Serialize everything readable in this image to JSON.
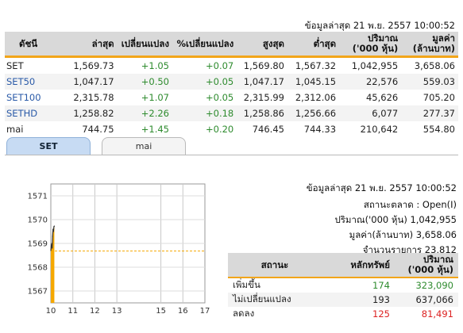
{
  "header": {
    "timestamp": "ข้อมูลล่าสุด 21 พ.ย. 2557 10:00:52"
  },
  "index_table": {
    "columns": [
      "ดัชนี",
      "ล่าสุด",
      "เปลี่ยนแปลง",
      "%เปลี่ยนแปลง",
      "สูงสุด",
      "ต่ำสุด",
      "ปริมาณ",
      "('000 หุ้น)",
      "มูลค่า",
      "(ล้านบาท)"
    ],
    "rows": [
      {
        "name": "SET",
        "last": "1,569.73",
        "chg": "+1.05",
        "pct": "+0.07",
        "high": "1,569.80",
        "low": "1,567.32",
        "vol": "1,042,955",
        "val": "3,658.06"
      },
      {
        "name": "SET50",
        "last": "1,047.17",
        "chg": "+0.50",
        "pct": "+0.05",
        "high": "1,047.17",
        "low": "1,045.15",
        "vol": "22,576",
        "val": "559.03"
      },
      {
        "name": "SET100",
        "last": "2,315.78",
        "chg": "+1.07",
        "pct": "+0.05",
        "high": "2,315.99",
        "low": "2,312.06",
        "vol": "45,626",
        "val": "705.20"
      },
      {
        "name": "SETHD",
        "last": "1,258.82",
        "chg": "+2.26",
        "pct": "+0.18",
        "high": "1,258.86",
        "low": "1,256.66",
        "vol": "6,077",
        "val": "277.37"
      },
      {
        "name": "mai",
        "last": "744.75",
        "chg": "+1.45",
        "pct": "+0.20",
        "high": "746.45",
        "low": "744.33",
        "vol": "210,642",
        "val": "554.80"
      }
    ]
  },
  "tabs": [
    {
      "label": "SET"
    },
    {
      "label": "mai"
    }
  ],
  "chart_data": {
    "type": "line",
    "x_ticks": [
      "10",
      "11",
      "12",
      "13",
      "15",
      "16",
      "17"
    ],
    "y_ticks": [
      "1571",
      "1570",
      "1569",
      "1568",
      "1567"
    ],
    "ylim": [
      1566.5,
      1571.5
    ],
    "prev_close": 1568.68,
    "x": [
      10.0,
      10.02,
      10.04,
      10.06,
      10.08,
      10.1,
      10.12,
      10.14,
      10.16
    ],
    "values": [
      1568.7,
      1568.9,
      1569.0,
      1568.8,
      1569.3,
      1569.6,
      1569.5,
      1569.7,
      1569.73
    ],
    "line_color": "#333333",
    "fill_color": "#f5a800",
    "ref_color": "#f5a800"
  },
  "market_info": {
    "timestamp": "ข้อมูลล่าสุด 21 พ.ย. 2557 10:00:52",
    "status": "สถานะตลาด : Open(I)",
    "volume": "ปริมาณ('000 หุ้น) 1,042,955",
    "value": "มูลค่า(ล้านบาท) 3,658.06",
    "trades": "จำนวนรายการ 23,812"
  },
  "stat_table": {
    "col_status": "สถานะ",
    "col_securities": "หลักทรัพย์",
    "col_volume_1": "ปริมาณ",
    "col_volume_2": "('000 หุ้น)",
    "rows": [
      {
        "status": "เพิ่มขึ้น",
        "count": "174",
        "volume": "323,090",
        "kind": "up"
      },
      {
        "status": "ไม่เปลี่ยนแปลง",
        "count": "193",
        "volume": "637,066",
        "kind": "flat"
      },
      {
        "status": "ลดลง",
        "count": "125",
        "volume": "81,491",
        "kind": "down"
      }
    ]
  }
}
